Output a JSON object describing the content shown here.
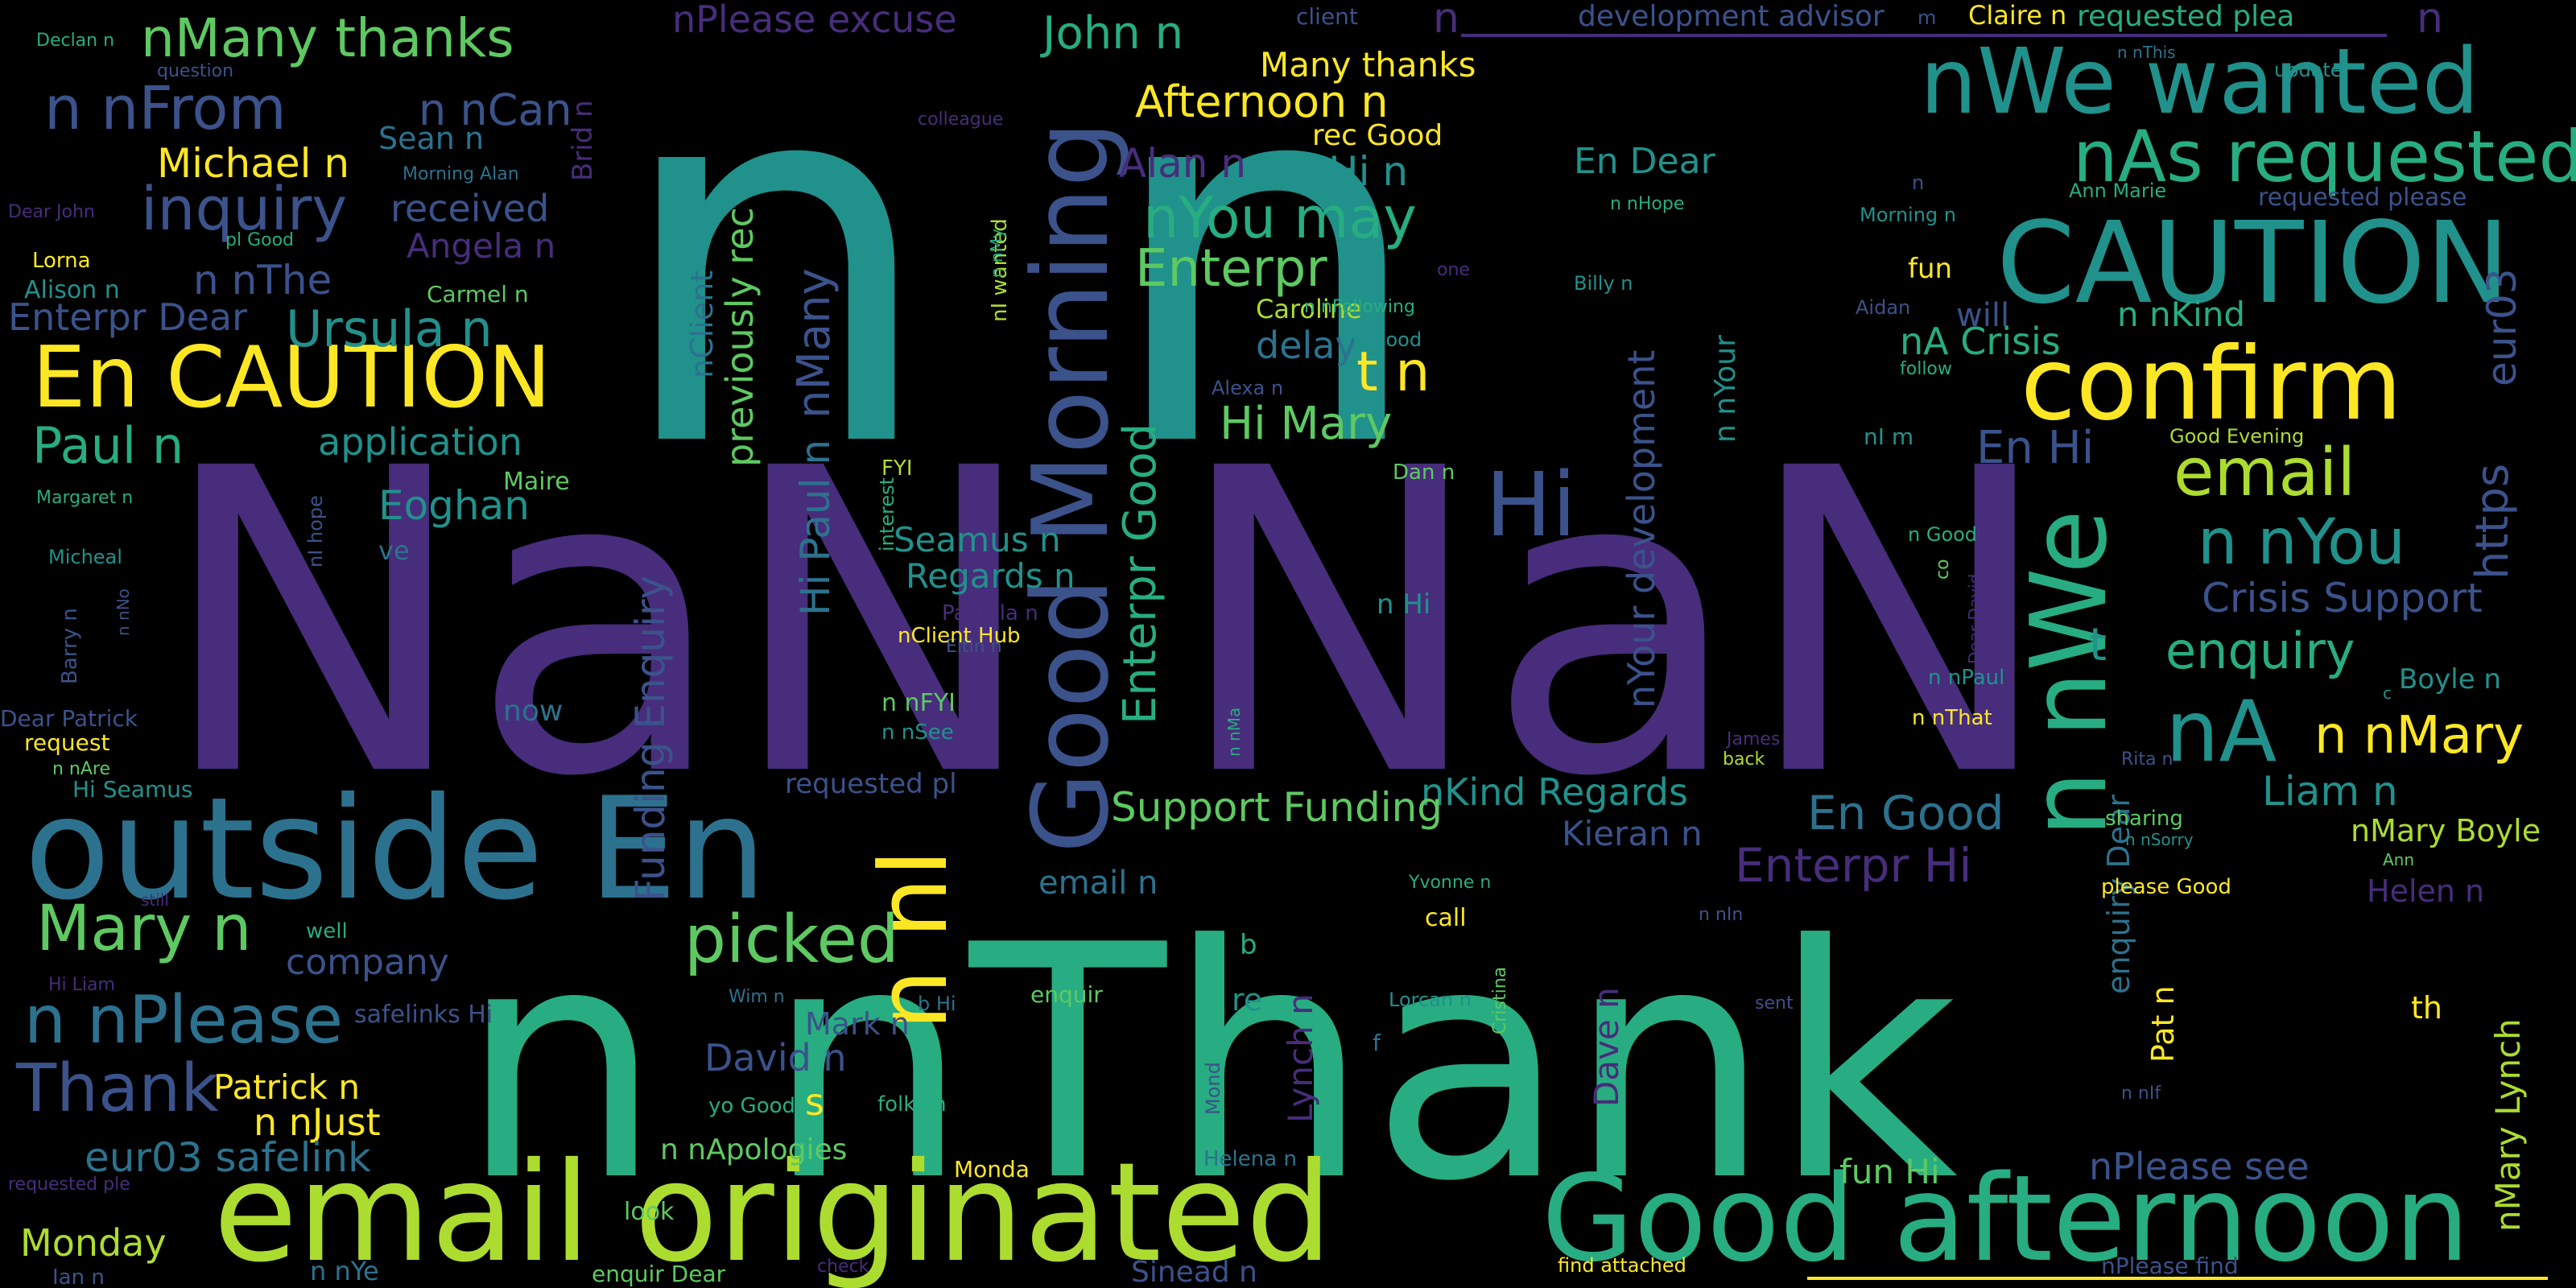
{
  "palette": {
    "background": "#000000",
    "purple": "#472d7b",
    "indigo": "#3b528b",
    "blue": "#2c728e",
    "teal": "#21918c",
    "green": "#27ad81",
    "lime": "#5ec962",
    "yellowgreen": "#addc30",
    "yellow": "#fde725"
  },
  "words": [
    {
      "text": "n n",
      "color": "teal"
    },
    {
      "text": "NaN NaN",
      "color": "purple"
    },
    {
      "text": "n nThank",
      "color": "green"
    },
    {
      "text": "email originated",
      "color": "yellowgreen"
    },
    {
      "text": "outside En",
      "color": "blue"
    },
    {
      "text": "Good afternoon",
      "color": "green"
    },
    {
      "text": "CAUTION",
      "color": "teal"
    },
    {
      "text": "confirm",
      "color": "yellow"
    },
    {
      "text": "nWe wanted",
      "color": "teal"
    },
    {
      "text": "nAs requested",
      "color": "green"
    },
    {
      "text": "Good Morning",
      "color": "indigo"
    },
    {
      "text": "En CAUTION",
      "color": "yellow"
    },
    {
      "text": "n nWe",
      "color": "green"
    },
    {
      "text": "nA",
      "color": "teal"
    },
    {
      "text": "n nI",
      "color": "yellow"
    },
    {
      "text": "Hi",
      "color": "indigo"
    },
    {
      "text": "n nPlease",
      "color": "blue"
    },
    {
      "text": "Thank",
      "color": "indigo"
    },
    {
      "text": "picked",
      "color": "lime"
    },
    {
      "text": "Mary n",
      "color": "lime"
    },
    {
      "text": "nMany thanks",
      "color": "lime"
    },
    {
      "text": "n nFrom",
      "color": "indigo"
    },
    {
      "text": "n nCan",
      "color": "indigo"
    },
    {
      "text": "inquiry",
      "color": "indigo"
    },
    {
      "text": "Michael n",
      "color": "yellow"
    },
    {
      "text": "received",
      "color": "indigo"
    },
    {
      "text": "Angela n",
      "color": "purple"
    },
    {
      "text": "n nThe",
      "color": "indigo"
    },
    {
      "text": "Ursula n",
      "color": "teal"
    },
    {
      "text": "Enterpr Dear",
      "color": "indigo"
    },
    {
      "text": "Paul n",
      "color": "green"
    },
    {
      "text": "application",
      "color": "teal"
    },
    {
      "text": "Eoghan",
      "color": "teal"
    },
    {
      "text": "email",
      "color": "yellowgreen"
    },
    {
      "text": "n nYou",
      "color": "teal"
    },
    {
      "text": "Crisis Support",
      "color": "indigo"
    },
    {
      "text": "n nMary",
      "color": "yellow"
    },
    {
      "text": "enquiry",
      "color": "green"
    },
    {
      "text": "Liam n",
      "color": "teal"
    },
    {
      "text": "nMary Boyle",
      "color": "yellowgreen"
    },
    {
      "text": "Helen n",
      "color": "purple"
    },
    {
      "text": "nMary Lynch",
      "color": "yellowgreen"
    },
    {
      "text": "nPlease see",
      "color": "indigo"
    },
    {
      "text": "fun Hi",
      "color": "lime"
    },
    {
      "text": "Enterpr Hi",
      "color": "purple"
    },
    {
      "text": "En Good",
      "color": "blue"
    },
    {
      "text": "nKind Regards",
      "color": "teal"
    },
    {
      "text": "Kieran n",
      "color": "indigo"
    },
    {
      "text": "Support Funding",
      "color": "lime"
    },
    {
      "text": "Funding Enquiry",
      "color": "indigo"
    },
    {
      "text": "Hi Paul n",
      "color": "blue"
    },
    {
      "text": "nMany",
      "color": "indigo"
    },
    {
      "text": "previously rec",
      "color": "lime"
    },
    {
      "text": "nClient",
      "color": "blue"
    },
    {
      "text": "Seamus n",
      "color": "teal"
    },
    {
      "text": "Regards n",
      "color": "teal"
    },
    {
      "text": "Hi Mary",
      "color": "lime"
    },
    {
      "text": "t n",
      "color": "yellow"
    },
    {
      "text": "Enterpr",
      "color": "lime"
    },
    {
      "text": "Enterpr Good",
      "color": "green"
    },
    {
      "text": "nYou may",
      "color": "green"
    },
    {
      "text": "Alan n",
      "color": "purple"
    },
    {
      "text": "Hi n",
      "color": "teal"
    },
    {
      "text": "Afternoon n",
      "color": "yellow"
    },
    {
      "text": "Many thanks",
      "color": "yellow"
    },
    {
      "text": "John n",
      "color": "green"
    },
    {
      "text": "nPlease excuse",
      "color": "purple"
    },
    {
      "text": "development advisor",
      "color": "indigo"
    },
    {
      "text": "Claire n",
      "color": "yellow"
    },
    {
      "text": "requested plea",
      "color": "green"
    },
    {
      "text": "Sean n",
      "color": "blue"
    },
    {
      "text": "Brid n",
      "color": "purple"
    },
    {
      "text": "En Dear",
      "color": "teal"
    },
    {
      "text": "rec Good",
      "color": "yellow"
    },
    {
      "text": "nYour development",
      "color": "indigo"
    },
    {
      "text": "n nYour",
      "color": "teal"
    },
    {
      "text": "delay",
      "color": "blue"
    },
    {
      "text": "Caroline",
      "color": "yellowgreen"
    },
    {
      "text": "nA Crisis",
      "color": "green"
    },
    {
      "text": "will",
      "color": "indigo"
    },
    {
      "text": "n nKind",
      "color": "green"
    },
    {
      "text": "eur03",
      "color": "indigo"
    },
    {
      "text": "https",
      "color": "indigo"
    },
    {
      "text": "En Hi",
      "color": "indigo"
    },
    {
      "text": "Boyle n",
      "color": "teal"
    },
    {
      "text": "enquiry Dear",
      "color": "blue"
    },
    {
      "text": "t",
      "color": "teal"
    },
    {
      "text": "fun",
      "color": "yellow"
    },
    {
      "text": "Morning n",
      "color": "teal"
    },
    {
      "text": "requested please",
      "color": "indigo"
    },
    {
      "text": "Ann Marie",
      "color": "green"
    },
    {
      "text": "n nHope",
      "color": "green"
    },
    {
      "text": "Billy n",
      "color": "teal"
    },
    {
      "text": "Declan n",
      "color": "green"
    },
    {
      "text": "question",
      "color": "indigo"
    },
    {
      "text": "colleague",
      "color": "purple"
    },
    {
      "text": "client",
      "color": "indigo"
    },
    {
      "text": "update",
      "color": "teal"
    },
    {
      "text": "n nThis",
      "color": "blue"
    },
    {
      "text": "Dear John",
      "color": "purple"
    },
    {
      "text": "pl Good",
      "color": "green"
    },
    {
      "text": "Lorna",
      "color": "yellow"
    },
    {
      "text": "Alison n",
      "color": "teal"
    },
    {
      "text": "Carmel n",
      "color": "lime"
    },
    {
      "text": "Morning Alan",
      "color": "blue"
    },
    {
      "text": "nI wanted",
      "color": "yellowgreen"
    },
    {
      "text": "n nMy",
      "color": "green"
    },
    {
      "text": "n nFollowing",
      "color": "green"
    },
    {
      "text": "b Good",
      "color": "teal"
    },
    {
      "text": "Alexa n",
      "color": "indigo"
    },
    {
      "text": "Dan n",
      "color": "lime"
    },
    {
      "text": "Maire",
      "color": "lime"
    },
    {
      "text": "FYI",
      "color": "yellowgreen"
    },
    {
      "text": "interest",
      "color": "green"
    },
    {
      "text": "Margaret n",
      "color": "green"
    },
    {
      "text": "nI hope",
      "color": "indigo"
    },
    {
      "text": "ve",
      "color": "blue"
    },
    {
      "text": "Micheal",
      "color": "teal"
    },
    {
      "text": "n nNo",
      "color": "indigo"
    },
    {
      "text": "Barry n",
      "color": "indigo"
    },
    {
      "text": "Dear Patrick",
      "color": "indigo"
    },
    {
      "text": "request",
      "color": "yellow"
    },
    {
      "text": "n nAre",
      "color": "lime"
    },
    {
      "text": "Hi Seamus",
      "color": "teal"
    },
    {
      "text": "now",
      "color": "blue"
    },
    {
      "text": "still",
      "color": "purple"
    },
    {
      "text": "well",
      "color": "green"
    },
    {
      "text": "company",
      "color": "indigo"
    },
    {
      "text": "Hi Liam",
      "color": "purple"
    },
    {
      "text": "safelinks Hi",
      "color": "indigo"
    },
    {
      "text": "Patrick n",
      "color": "yellow"
    },
    {
      "text": "n nJust",
      "color": "yellow"
    },
    {
      "text": "eur03 safelink",
      "color": "blue"
    },
    {
      "text": "requested ple",
      "color": "purple"
    },
    {
      "text": "Monday",
      "color": "yellowgreen"
    },
    {
      "text": "Ian n",
      "color": "indigo"
    },
    {
      "text": "n nYe",
      "color": "blue"
    },
    {
      "text": "enquir Dear",
      "color": "lime"
    },
    {
      "text": "check",
      "color": "purple"
    },
    {
      "text": "Sinead n",
      "color": "indigo"
    },
    {
      "text": "find attached",
      "color": "yellow"
    },
    {
      "text": "nPlease find",
      "color": "indigo"
    },
    {
      "text": "Pamela n",
      "color": "purple"
    },
    {
      "text": "Eltin n",
      "color": "indigo"
    },
    {
      "text": "nClient Hub",
      "color": "yellow"
    },
    {
      "text": "n nFYI",
      "color": "lime"
    },
    {
      "text": "n nSee",
      "color": "teal"
    },
    {
      "text": "n nMa",
      "color": "green"
    },
    {
      "text": "requested pl",
      "color": "indigo"
    },
    {
      "text": "email n",
      "color": "blue"
    },
    {
      "text": "Mark n",
      "color": "indigo"
    },
    {
      "text": "David n",
      "color": "indigo"
    },
    {
      "text": "s",
      "color": "yellow"
    },
    {
      "text": "n nApologies",
      "color": "lime"
    },
    {
      "text": "Monda",
      "color": "yellow"
    },
    {
      "text": "look",
      "color": "lime"
    },
    {
      "text": "folks n",
      "color": "green"
    },
    {
      "text": "yo Good",
      "color": "green"
    },
    {
      "text": "b Hi",
      "color": "blue"
    },
    {
      "text": "enquir",
      "color": "lime"
    },
    {
      "text": "Wim n",
      "color": "blue"
    },
    {
      "text": "Mond",
      "color": "indigo"
    },
    {
      "text": "Helena n",
      "color": "blue"
    },
    {
      "text": "Lynch n",
      "color": "purple"
    },
    {
      "text": "re",
      "color": "teal"
    },
    {
      "text": "b",
      "color": "green"
    },
    {
      "text": "call",
      "color": "yellow"
    },
    {
      "text": "Yvonne n",
      "color": "green"
    },
    {
      "text": "Cristina",
      "color": "lime"
    },
    {
      "text": "Lorcan n",
      "color": "teal"
    },
    {
      "text": "f",
      "color": "blue"
    },
    {
      "text": "Dave n",
      "color": "purple"
    },
    {
      "text": "James n",
      "color": "purple"
    },
    {
      "text": "back",
      "color": "yellowgreen"
    },
    {
      "text": "n nIn",
      "color": "indigo"
    },
    {
      "text": "sent",
      "color": "indigo"
    },
    {
      "text": "please Good",
      "color": "yellow"
    },
    {
      "text": "Pat n",
      "color": "yellow"
    },
    {
      "text": "n nIf",
      "color": "indigo"
    },
    {
      "text": "th",
      "color": "yellow"
    },
    {
      "text": "n nSorry",
      "color": "teal"
    },
    {
      "text": "Ann",
      "color": "lime"
    },
    {
      "text": "sharing",
      "color": "lime"
    },
    {
      "text": "Rita n",
      "color": "indigo"
    },
    {
      "text": "n nThat",
      "color": "yellow"
    },
    {
      "text": "n nPaul",
      "color": "teal"
    },
    {
      "text": "Dear David",
      "color": "purple"
    },
    {
      "text": "co",
      "color": "lime"
    },
    {
      "text": "n Good",
      "color": "green"
    },
    {
      "text": "c",
      "color": "teal"
    },
    {
      "text": "nI m",
      "color": "teal"
    },
    {
      "text": "Good Evening",
      "color": "yellowgreen"
    },
    {
      "text": "Aidan",
      "color": "indigo"
    },
    {
      "text": "follow",
      "color": "green"
    },
    {
      "text": "one",
      "color": "purple"
    },
    {
      "text": "n Hi",
      "color": "teal"
    },
    {
      "text": "m",
      "color": "indigo"
    },
    {
      "text": "n",
      "color": "purple"
    },
    {
      "text": "n",
      "color": "purple"
    },
    {
      "text": "n",
      "color": "indigo"
    }
  ]
}
